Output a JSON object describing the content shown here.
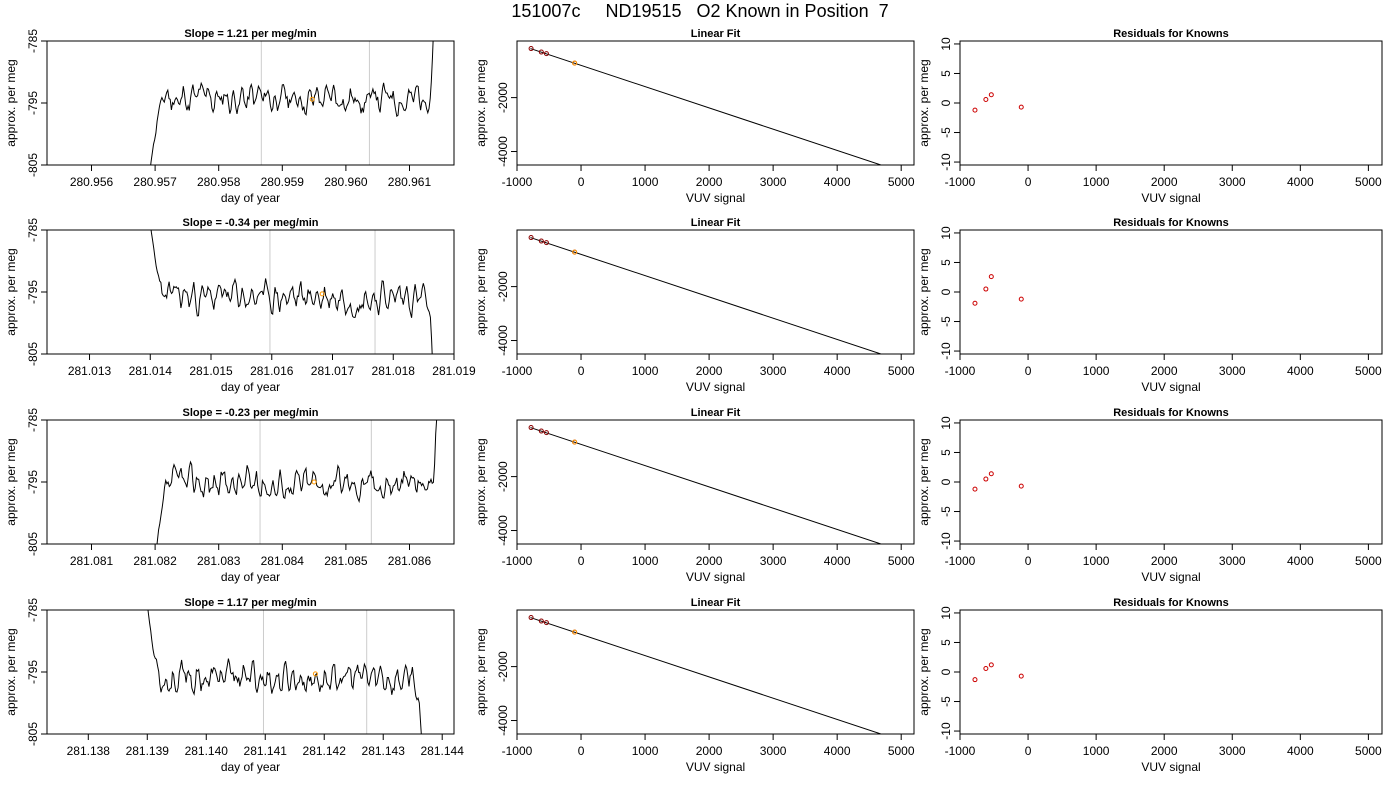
{
  "title": "151007c     ND19515   O2 Known in Position  7",
  "chart_data": [
    {
      "type": "line",
      "row": 0,
      "panel": "timeseries",
      "title": "Slope =  1.21  per meg/min",
      "xlabel": "day of year",
      "ylabel": "approx. per meg",
      "xlim": [
        280.9553,
        280.9617
      ],
      "ylim": [
        -805,
        -785
      ],
      "xticks": [
        280.956,
        280.957,
        280.958,
        280.959,
        280.96,
        280.961
      ],
      "xtick_labels": [
        "280.956",
        "280.957",
        "280.958",
        "280.959",
        "280.960",
        "280.961"
      ],
      "yticks": [
        -805,
        -795,
        -785
      ],
      "ytick_labels": [
        "-805",
        "-795",
        "-785"
      ],
      "vlines": [
        280.95867,
        280.96037
      ],
      "segment": [
        280.9569,
        280.9614
      ],
      "start_y": -808,
      "end_y": -780,
      "mean_y": -794.3,
      "marker": {
        "x": 280.95947,
        "y": -794.4
      },
      "noise_seed": 11
    },
    {
      "type": "scatter",
      "row": 0,
      "panel": "linear-fit",
      "title": "Linear Fit",
      "xlabel": "VUV signal",
      "ylabel": "approx. per meg",
      "xlim": [
        -1000,
        5200
      ],
      "ylim": [
        -4500,
        100
      ],
      "xticks": [
        -1000,
        0,
        1000,
        2000,
        3000,
        4000,
        5000
      ],
      "xtick_labels": [
        "-1000",
        "0",
        "1000",
        "2000",
        "3000",
        "4000",
        "5000"
      ],
      "yticks": [
        -4000,
        -2000
      ],
      "ytick_labels": [
        "-4000",
        "-2000"
      ],
      "line": [
        [
          -790,
          -180
        ],
        [
          4900,
          -4670
        ]
      ],
      "points": [
        [
          -780,
          -180
        ],
        [
          -620,
          -310
        ],
        [
          -540,
          -370
        ],
        [
          -100,
          -720
        ]
      ],
      "highlight": [
        -100,
        -720
      ]
    },
    {
      "type": "scatter",
      "row": 0,
      "panel": "residuals",
      "title": "Residuals for Knowns",
      "xlabel": "VUV signal",
      "ylabel": "approx. per meg",
      "xlim": [
        -1000,
        5200
      ],
      "ylim": [
        -10.5,
        10.5
      ],
      "xticks": [
        -1000,
        0,
        1000,
        2000,
        3000,
        4000,
        5000
      ],
      "xtick_labels": [
        "-1000",
        "0",
        "1000",
        "2000",
        "3000",
        "4000",
        "5000"
      ],
      "yticks": [
        -10,
        -5,
        0,
        5,
        10
      ],
      "ytick_labels": [
        "-10",
        "-5",
        "0",
        "5",
        "10"
      ],
      "points": [
        [
          -780,
          -1.2
        ],
        [
          -620,
          0.6
        ],
        [
          -540,
          1.4
        ],
        [
          -100,
          -0.7
        ]
      ]
    },
    {
      "type": "line",
      "row": 1,
      "panel": "timeseries",
      "title": "Slope =  -0.34  per meg/min",
      "xlabel": "day of year",
      "ylabel": "approx. per meg",
      "xlim": [
        281.0123,
        281.019
      ],
      "ylim": [
        -805,
        -785
      ],
      "xticks": [
        281.013,
        281.014,
        281.015,
        281.016,
        281.017,
        281.018,
        281.019
      ],
      "xtick_labels": [
        "281.013",
        "281.014",
        "281.015",
        "281.016",
        "281.017",
        "281.018",
        "281.019"
      ],
      "yticks": [
        -805,
        -795,
        -785
      ],
      "ytick_labels": [
        "-805",
        "-795",
        "-785"
      ],
      "vlines": [
        281.01597,
        281.0177
      ],
      "segment": [
        281.014,
        281.01865
      ],
      "start_y": -784,
      "end_y": -808,
      "mean_y": -795.8,
      "marker": {
        "x": 281.01683,
        "y": -795.3
      },
      "noise_seed": 23
    },
    {
      "type": "scatter",
      "row": 1,
      "panel": "linear-fit",
      "title": "Linear Fit",
      "xlabel": "VUV signal",
      "ylabel": "approx. per meg",
      "xlim": [
        -1000,
        5200
      ],
      "ylim": [
        -4500,
        100
      ],
      "xticks": [
        -1000,
        0,
        1000,
        2000,
        3000,
        4000,
        5000
      ],
      "xtick_labels": [
        "-1000",
        "0",
        "1000",
        "2000",
        "3000",
        "4000",
        "5000"
      ],
      "yticks": [
        -4000,
        -2000
      ],
      "ytick_labels": [
        "-4000",
        "-2000"
      ],
      "line": [
        [
          -790,
          -180
        ],
        [
          4900,
          -4670
        ]
      ],
      "points": [
        [
          -780,
          -180
        ],
        [
          -620,
          -310
        ],
        [
          -540,
          -370
        ],
        [
          -100,
          -720
        ]
      ],
      "highlight": [
        -100,
        -720
      ]
    },
    {
      "type": "scatter",
      "row": 1,
      "panel": "residuals",
      "title": "Residuals for Knowns",
      "xlabel": "VUV signal",
      "ylabel": "approx. per meg",
      "xlim": [
        -1000,
        5200
      ],
      "ylim": [
        -10.5,
        10.5
      ],
      "xticks": [
        -1000,
        0,
        1000,
        2000,
        3000,
        4000,
        5000
      ],
      "xtick_labels": [
        "-1000",
        "0",
        "1000",
        "2000",
        "3000",
        "4000",
        "5000"
      ],
      "yticks": [
        -10,
        -5,
        0,
        5,
        10
      ],
      "ytick_labels": [
        "-10",
        "-5",
        "0",
        "5",
        "10"
      ],
      "points": [
        [
          -780,
          -1.9
        ],
        [
          -620,
          0.5
        ],
        [
          -540,
          2.6
        ],
        [
          -100,
          -1.2
        ]
      ]
    },
    {
      "type": "line",
      "row": 2,
      "panel": "timeseries",
      "title": "Slope =  -0.23  per meg/min",
      "xlabel": "day of year",
      "ylabel": "approx. per meg",
      "xlim": [
        281.0803,
        281.0867
      ],
      "ylim": [
        -805,
        -785
      ],
      "xticks": [
        281.081,
        281.082,
        281.083,
        281.084,
        281.085,
        281.086
      ],
      "xtick_labels": [
        "281.081",
        "281.082",
        "281.083",
        "281.084",
        "281.085",
        "281.086"
      ],
      "yticks": [
        -805,
        -795,
        -785
      ],
      "ytick_labels": [
        "-805",
        "-795",
        "-785"
      ],
      "vlines": [
        281.08365,
        281.0854
      ],
      "segment": [
        281.082,
        281.08645
      ],
      "start_y": -808,
      "end_y": -782,
      "mean_y": -795.2,
      "marker": {
        "x": 281.0845,
        "y": -795.0
      },
      "noise_seed": 37
    },
    {
      "type": "scatter",
      "row": 2,
      "panel": "linear-fit",
      "title": "Linear Fit",
      "xlabel": "VUV signal",
      "ylabel": "approx. per meg",
      "xlim": [
        -1000,
        5200
      ],
      "ylim": [
        -4500,
        100
      ],
      "xticks": [
        -1000,
        0,
        1000,
        2000,
        3000,
        4000,
        5000
      ],
      "xtick_labels": [
        "-1000",
        "0",
        "1000",
        "2000",
        "3000",
        "4000",
        "5000"
      ],
      "yticks": [
        -4000,
        -2000
      ],
      "ytick_labels": [
        "-4000",
        "-2000"
      ],
      "line": [
        [
          -790,
          -180
        ],
        [
          4900,
          -4670
        ]
      ],
      "points": [
        [
          -780,
          -180
        ],
        [
          -620,
          -310
        ],
        [
          -540,
          -370
        ],
        [
          -100,
          -720
        ]
      ],
      "highlight": [
        -100,
        -720
      ]
    },
    {
      "type": "scatter",
      "row": 2,
      "panel": "residuals",
      "title": "Residuals for Knowns",
      "xlabel": "VUV signal",
      "ylabel": "approx. per meg",
      "xlim": [
        -1000,
        5200
      ],
      "ylim": [
        -10.5,
        10.5
      ],
      "xticks": [
        -1000,
        0,
        1000,
        2000,
        3000,
        4000,
        5000
      ],
      "xtick_labels": [
        "-1000",
        "0",
        "1000",
        "2000",
        "3000",
        "4000",
        "5000"
      ],
      "yticks": [
        -10,
        -5,
        0,
        5,
        10
      ],
      "ytick_labels": [
        "-10",
        "-5",
        "0",
        "5",
        "10"
      ],
      "points": [
        [
          -780,
          -1.2
        ],
        [
          -620,
          0.5
        ],
        [
          -540,
          1.4
        ],
        [
          -100,
          -0.7
        ]
      ]
    },
    {
      "type": "line",
      "row": 3,
      "panel": "timeseries",
      "title": "Slope =  1.17  per meg/min",
      "xlabel": "day of year",
      "ylabel": "approx. per meg",
      "xlim": [
        281.1373,
        281.1442
      ],
      "ylim": [
        -805,
        -785
      ],
      "xticks": [
        281.138,
        281.139,
        281.14,
        281.141,
        281.142,
        281.143,
        281.144
      ],
      "xtick_labels": [
        "281.138",
        "281.139",
        "281.140",
        "281.141",
        "281.142",
        "281.143",
        "281.144"
      ],
      "yticks": [
        -805,
        -795,
        -785
      ],
      "ytick_labels": [
        "-805",
        "-795",
        "-785"
      ],
      "vlines": [
        281.14097,
        281.14272
      ],
      "segment": [
        281.139,
        281.14365
      ],
      "start_y": -784,
      "end_y": -808,
      "mean_y": -796.0,
      "marker": {
        "x": 281.14185,
        "y": -795.3
      },
      "noise_seed": 53
    },
    {
      "type": "scatter",
      "row": 3,
      "panel": "linear-fit",
      "title": "Linear Fit",
      "xlabel": "VUV signal",
      "ylabel": "approx. per meg",
      "xlim": [
        -1000,
        5200
      ],
      "ylim": [
        -4500,
        100
      ],
      "xticks": [
        -1000,
        0,
        1000,
        2000,
        3000,
        4000,
        5000
      ],
      "xtick_labels": [
        "-1000",
        "0",
        "1000",
        "2000",
        "3000",
        "4000",
        "5000"
      ],
      "yticks": [
        -4000,
        -2000
      ],
      "ytick_labels": [
        "-4000",
        "-2000"
      ],
      "line": [
        [
          -790,
          -180
        ],
        [
          4900,
          -4670
        ]
      ],
      "points": [
        [
          -780,
          -180
        ],
        [
          -620,
          -310
        ],
        [
          -540,
          -370
        ],
        [
          -100,
          -720
        ]
      ],
      "highlight": [
        -100,
        -720
      ]
    },
    {
      "type": "scatter",
      "row": 3,
      "panel": "residuals",
      "title": "Residuals for Knowns",
      "xlabel": "VUV signal",
      "ylabel": "approx. per meg",
      "xlim": [
        -1000,
        5200
      ],
      "ylim": [
        -10.5,
        10.5
      ],
      "xticks": [
        -1000,
        0,
        1000,
        2000,
        3000,
        4000,
        5000
      ],
      "xtick_labels": [
        "-1000",
        "0",
        "1000",
        "2000",
        "3000",
        "4000",
        "5000"
      ],
      "yticks": [
        -10,
        -5,
        0,
        5,
        10
      ],
      "ytick_labels": [
        "-10",
        "-5",
        "0",
        "5",
        "10"
      ],
      "points": [
        [
          -780,
          -1.3
        ],
        [
          -620,
          0.6
        ],
        [
          -540,
          1.2
        ],
        [
          -100,
          -0.7
        ]
      ]
    }
  ],
  "colors": {
    "line": "#000000",
    "vline": "#cccccc",
    "fit_point": "#8b0000",
    "highlight": "#ff9900",
    "residual_point": "#cc0000"
  }
}
